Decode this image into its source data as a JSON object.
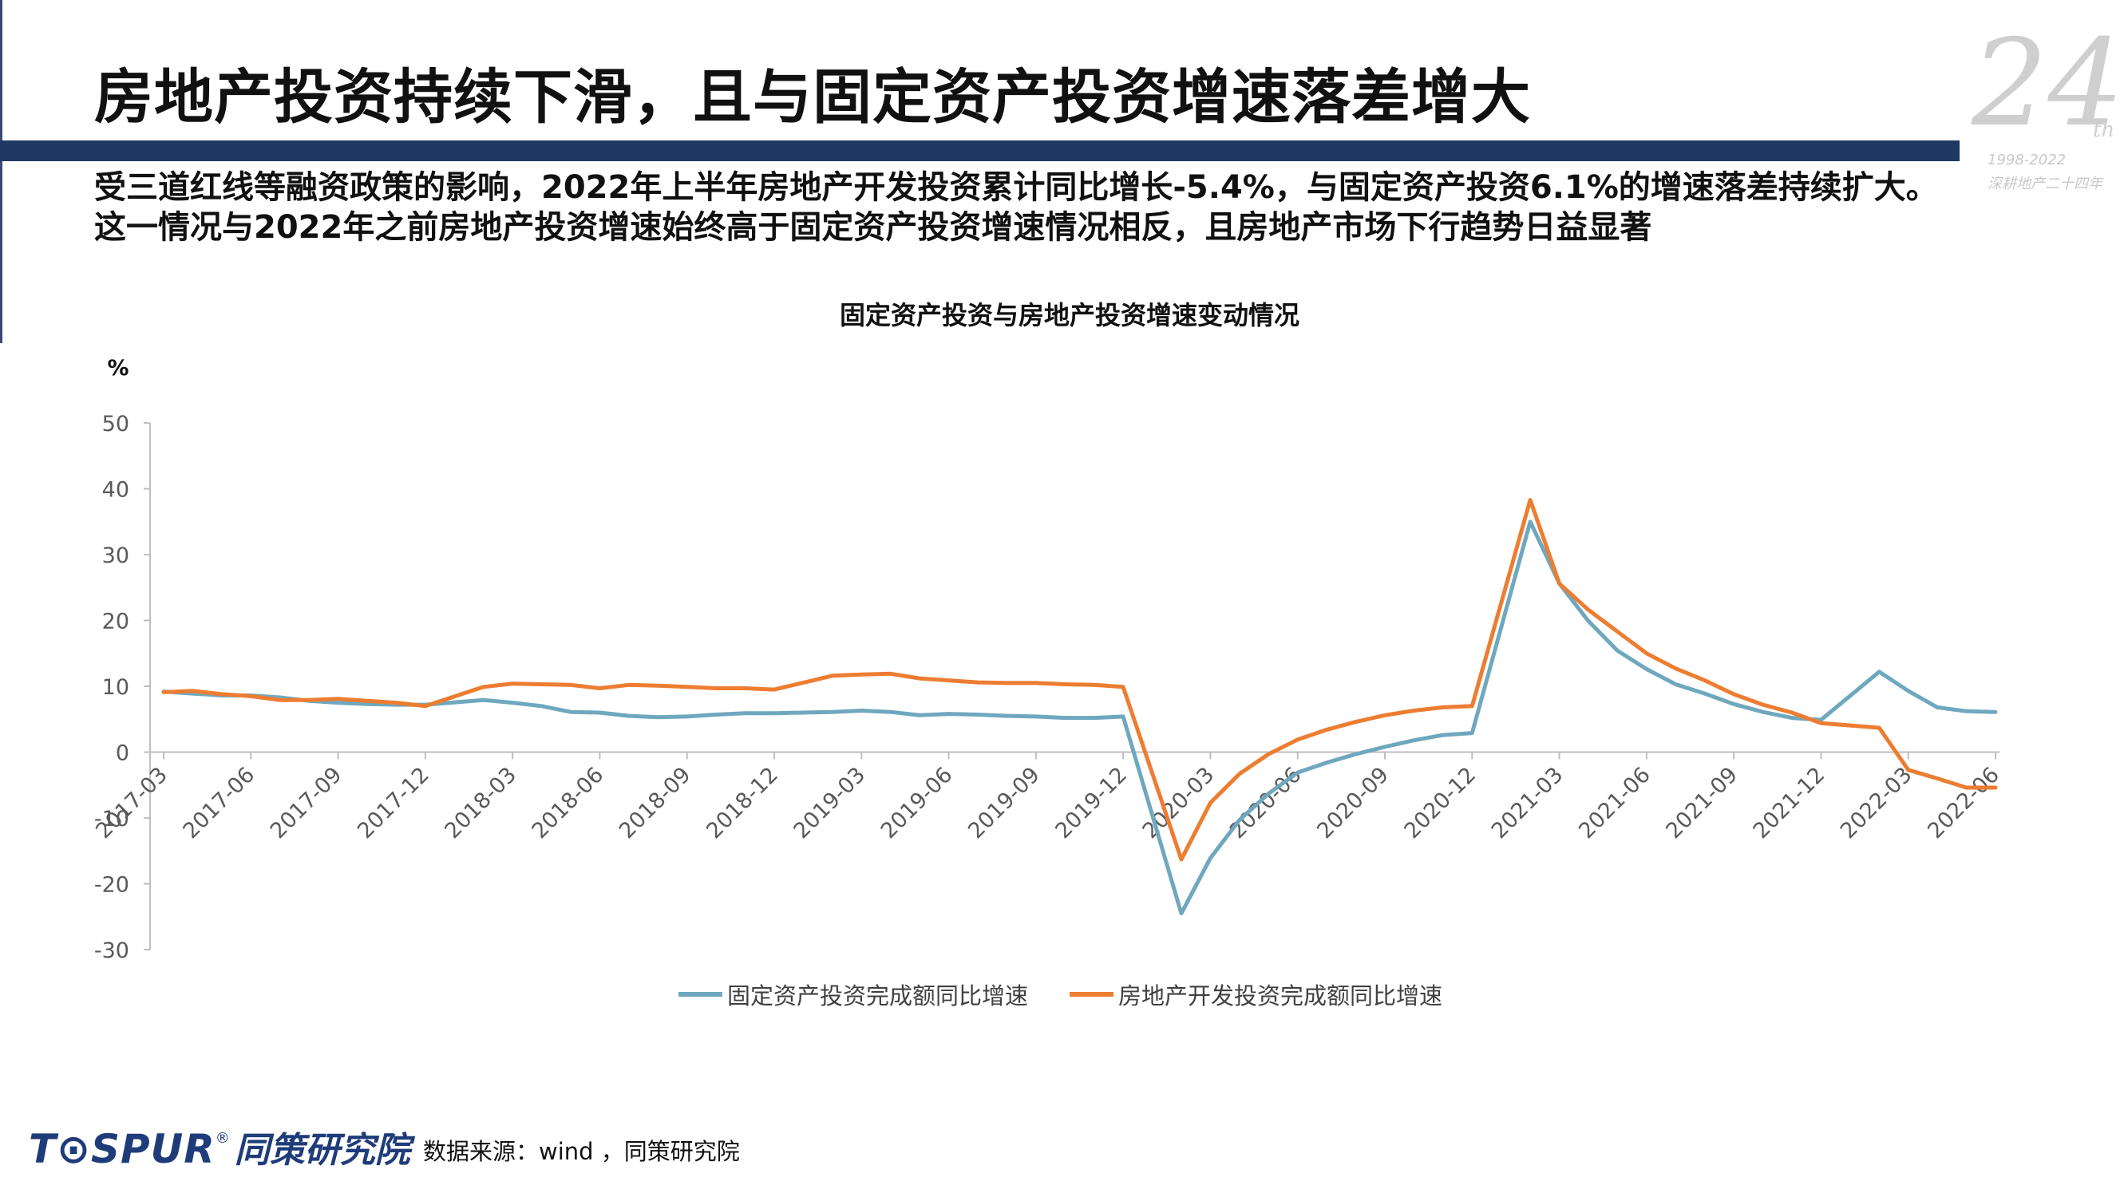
{
  "slide": {
    "title": "房地产投资持续下滑，且与固定资产投资增速落差增大",
    "summary": "受三道红线等融资政策的影响，2022年上半年房地产开发投资累计同比增长-5.4%，与固定资产投资6.1%的增速落差持续扩大。这一情况与2022年之前房地产投资增速始终高于固定资产投资增速情况相反，且房地产市场下行趋势日益显著",
    "source": "数据来源：wind ，同策研究院",
    "logo_text": "T⊙SPUR",
    "logo_reg": "®",
    "logo_cn": "同策研究院",
    "anniversary": {
      "number": "24",
      "suffix": "th",
      "years": "1998-2022",
      "motto": "深耕地产二十四年"
    }
  },
  "colors": {
    "title_bar": "#1f3864",
    "series_fixed": "#6fa8be",
    "series_realestate": "#ed7d31",
    "axis": "#bfbfbf",
    "tick_text": "#595959"
  },
  "chart_data": {
    "type": "line",
    "title": "固定资产投资与房地产投资增速变动情况",
    "ylabel": "%",
    "xlabel": "",
    "ylim": [
      -30,
      50
    ],
    "yticks": [
      -30,
      -20,
      -10,
      0,
      10,
      20,
      30,
      40,
      50
    ],
    "grid": false,
    "legend_position": "bottom",
    "x_tick_labels": [
      "2017-03",
      "2017-06",
      "2017-09",
      "2017-12",
      "2018-03",
      "2018-06",
      "2018-09",
      "2018-12",
      "2019-03",
      "2019-06",
      "2019-09",
      "2019-12",
      "2020-03",
      "2020-06",
      "2020-09",
      "2020-12",
      "2021-03",
      "2021-06",
      "2021-09",
      "2021-12",
      "2022-03",
      "2022-06"
    ],
    "x": [
      "2017-03",
      "2017-04",
      "2017-05",
      "2017-06",
      "2017-07",
      "2017-08",
      "2017-09",
      "2017-10",
      "2017-11",
      "2017-12",
      "2018-02",
      "2018-03",
      "2018-04",
      "2018-05",
      "2018-06",
      "2018-07",
      "2018-08",
      "2018-09",
      "2018-10",
      "2018-11",
      "2018-12",
      "2019-02",
      "2019-03",
      "2019-04",
      "2019-05",
      "2019-06",
      "2019-07",
      "2019-08",
      "2019-09",
      "2019-10",
      "2019-11",
      "2019-12",
      "2020-02",
      "2020-03",
      "2020-04",
      "2020-05",
      "2020-06",
      "2020-07",
      "2020-08",
      "2020-09",
      "2020-10",
      "2020-11",
      "2020-12",
      "2021-02",
      "2021-03",
      "2021-04",
      "2021-05",
      "2021-06",
      "2021-07",
      "2021-08",
      "2021-09",
      "2021-10",
      "2021-11",
      "2021-12",
      "2022-02",
      "2022-03",
      "2022-04",
      "2022-05",
      "2022-06"
    ],
    "series": [
      {
        "name": "固定资产投资完成额同比增速",
        "values": [
          9.2,
          8.9,
          8.6,
          8.6,
          8.3,
          7.8,
          7.5,
          7.3,
          7.2,
          7.2,
          7.9,
          7.5,
          7.0,
          6.1,
          6.0,
          5.5,
          5.3,
          5.4,
          5.7,
          5.9,
          5.9,
          6.1,
          6.3,
          6.1,
          5.6,
          5.8,
          5.7,
          5.5,
          5.4,
          5.2,
          5.2,
          5.4,
          -24.5,
          -16.1,
          -10.3,
          -6.3,
          -3.1,
          -1.6,
          -0.3,
          0.8,
          1.8,
          2.6,
          2.9,
          35.0,
          25.6,
          19.9,
          15.4,
          12.6,
          10.3,
          8.9,
          7.3,
          6.1,
          5.2,
          4.9,
          12.2,
          9.3,
          6.8,
          6.2,
          6.1
        ]
      },
      {
        "name": "房地产开发投资完成额同比增速",
        "values": [
          9.1,
          9.3,
          8.8,
          8.5,
          7.9,
          7.9,
          8.1,
          7.8,
          7.5,
          7.0,
          9.9,
          10.4,
          10.3,
          10.2,
          9.7,
          10.2,
          10.1,
          9.9,
          9.7,
          9.7,
          9.5,
          11.6,
          11.8,
          11.9,
          11.2,
          10.9,
          10.6,
          10.5,
          10.5,
          10.3,
          10.2,
          9.9,
          -16.3,
          -7.7,
          -3.3,
          -0.3,
          1.9,
          3.4,
          4.6,
          5.6,
          6.3,
          6.8,
          7.0,
          38.3,
          25.6,
          21.6,
          18.3,
          15.0,
          12.7,
          10.9,
          8.8,
          7.2,
          6.0,
          4.4,
          3.7,
          -2.7,
          -4.0,
          -5.4,
          -5.4
        ]
      }
    ]
  }
}
